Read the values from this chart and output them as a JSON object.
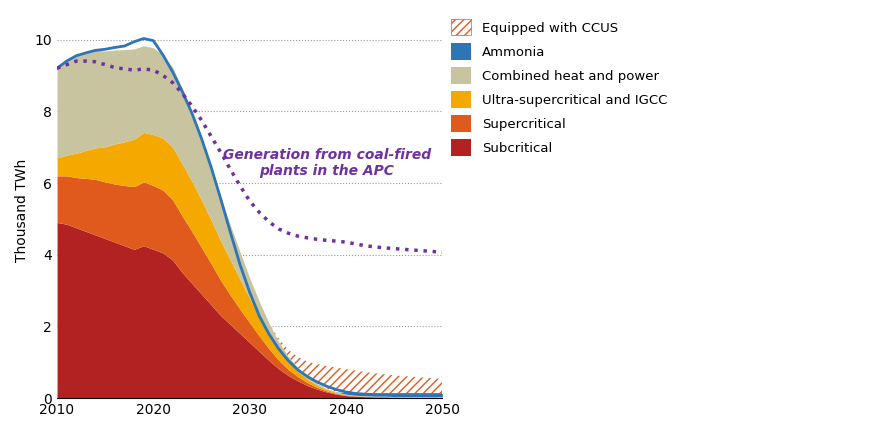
{
  "years": [
    2010,
    2011,
    2012,
    2013,
    2014,
    2015,
    2016,
    2017,
    2018,
    2019,
    2020,
    2021,
    2022,
    2023,
    2024,
    2025,
    2026,
    2027,
    2028,
    2029,
    2030,
    2031,
    2032,
    2033,
    2034,
    2035,
    2036,
    2037,
    2038,
    2039,
    2040,
    2041,
    2042,
    2043,
    2044,
    2045,
    2046,
    2047,
    2048,
    2049,
    2050
  ],
  "subcritical": [
    4.9,
    4.85,
    4.75,
    4.65,
    4.55,
    4.45,
    4.35,
    4.25,
    4.15,
    4.25,
    4.15,
    4.05,
    3.85,
    3.5,
    3.2,
    2.9,
    2.6,
    2.3,
    2.05,
    1.8,
    1.55,
    1.3,
    1.05,
    0.82,
    0.63,
    0.48,
    0.35,
    0.25,
    0.17,
    0.11,
    0.07,
    0.05,
    0.04,
    0.03,
    0.03,
    0.02,
    0.02,
    0.02,
    0.02,
    0.02,
    0.02
  ],
  "supercritical": [
    1.3,
    1.35,
    1.4,
    1.48,
    1.55,
    1.58,
    1.62,
    1.68,
    1.75,
    1.78,
    1.78,
    1.75,
    1.68,
    1.58,
    1.45,
    1.3,
    1.15,
    0.98,
    0.82,
    0.68,
    0.55,
    0.43,
    0.33,
    0.24,
    0.17,
    0.12,
    0.08,
    0.05,
    0.03,
    0.02,
    0.015,
    0.01,
    0.01,
    0.01,
    0.01,
    0.01,
    0.01,
    0.01,
    0.01,
    0.01,
    0.01
  ],
  "ultrasupercritical": [
    0.5,
    0.58,
    0.68,
    0.78,
    0.88,
    0.98,
    1.12,
    1.22,
    1.32,
    1.38,
    1.42,
    1.45,
    1.47,
    1.45,
    1.4,
    1.32,
    1.22,
    1.1,
    0.98,
    0.83,
    0.68,
    0.54,
    0.42,
    0.31,
    0.22,
    0.15,
    0.1,
    0.06,
    0.04,
    0.025,
    0.015,
    0.01,
    0.01,
    0.01,
    0.01,
    0.01,
    0.01,
    0.01,
    0.01,
    0.01,
    0.01
  ],
  "chp": [
    2.5,
    2.62,
    2.72,
    2.72,
    2.72,
    2.67,
    2.62,
    2.57,
    2.52,
    2.42,
    2.42,
    2.32,
    2.22,
    2.12,
    1.92,
    1.72,
    1.47,
    1.22,
    0.97,
    0.77,
    0.57,
    0.42,
    0.3,
    0.22,
    0.15,
    0.1,
    0.07,
    0.05,
    0.03,
    0.02,
    0.01,
    0.01,
    0.008,
    0.005,
    0.005,
    0.005,
    0.005,
    0.005,
    0.005,
    0.005,
    0.005
  ],
  "ammonia": [
    0.0,
    0.0,
    0.0,
    0.0,
    0.0,
    0.0,
    0.0,
    0.0,
    0.0,
    0.0,
    0.0,
    0.0,
    0.0,
    0.0,
    0.0,
    0.0,
    0.0,
    0.0,
    0.0,
    0.0,
    0.0,
    0.0,
    0.0,
    0.0,
    0.0,
    0.0,
    0.0,
    0.0,
    0.0,
    0.005,
    0.05,
    0.07,
    0.08,
    0.09,
    0.09,
    0.09,
    0.09,
    0.09,
    0.09,
    0.09,
    0.09
  ],
  "ccus": [
    0.0,
    0.0,
    0.0,
    0.0,
    0.0,
    0.0,
    0.0,
    0.0,
    0.0,
    0.0,
    0.0,
    0.0,
    0.0,
    0.0,
    0.0,
    0.0,
    0.0,
    0.0,
    0.0,
    0.0,
    0.0,
    0.0,
    0.0,
    0.08,
    0.18,
    0.3,
    0.42,
    0.54,
    0.63,
    0.67,
    0.65,
    0.62,
    0.58,
    0.55,
    0.52,
    0.5,
    0.48,
    0.46,
    0.44,
    0.42,
    0.4
  ],
  "apc_dotted": [
    9.2,
    9.3,
    9.4,
    9.4,
    9.38,
    9.3,
    9.22,
    9.18,
    9.15,
    9.18,
    9.15,
    9.0,
    8.8,
    8.5,
    8.15,
    7.75,
    7.3,
    6.85,
    6.38,
    5.92,
    5.5,
    5.18,
    4.92,
    4.72,
    4.6,
    4.52,
    4.47,
    4.43,
    4.4,
    4.38,
    4.35,
    4.3,
    4.25,
    4.22,
    4.19,
    4.17,
    4.15,
    4.13,
    4.11,
    4.09,
    4.07
  ],
  "blue_line": [
    9.2,
    9.4,
    9.55,
    9.63,
    9.7,
    9.73,
    9.78,
    9.82,
    9.94,
    10.03,
    9.97,
    9.57,
    9.1,
    8.55,
    7.95,
    7.24,
    6.44,
    5.55,
    4.62,
    3.72,
    2.95,
    2.29,
    1.79,
    1.38,
    1.05,
    0.79,
    0.6,
    0.45,
    0.33,
    0.24,
    0.17,
    0.13,
    0.11,
    0.1,
    0.1,
    0.1,
    0.1,
    0.1,
    0.1,
    0.1,
    0.1
  ],
  "colors": {
    "subcritical": "#b22222",
    "supercritical": "#e05a1e",
    "ultrasupercritical": "#f5a800",
    "chp": "#c8c4a0",
    "ammonia": "#2e75b6",
    "ccus_hatch_color": "#e05a1e"
  },
  "apc_color": "#7030a0",
  "blue_line_color": "#2e75b6",
  "annotation_text": "Generation from coal-fired\nplants in the APC",
  "annotation_color": "#7030a0",
  "ylabel": "Thousand TWh",
  "ylim": [
    0,
    10.5
  ],
  "xlim": [
    2010,
    2050
  ],
  "yticks": [
    0,
    2,
    4,
    6,
    8,
    10
  ],
  "xticks": [
    2010,
    2020,
    2030,
    2040,
    2050
  ]
}
